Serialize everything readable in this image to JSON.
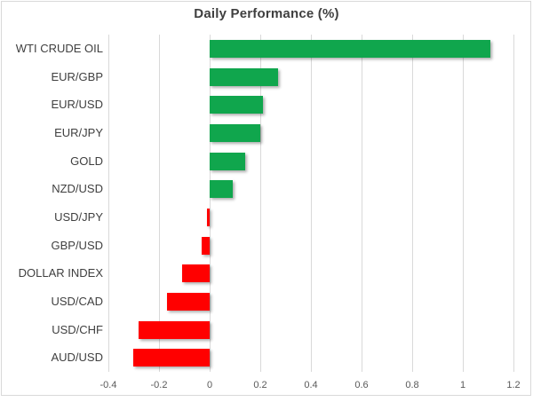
{
  "chart_data": {
    "type": "bar",
    "orientation": "horizontal",
    "title": "Daily Performance (%)",
    "categories": [
      "WTI CRUDE OIL",
      "EUR/GBP",
      "EUR/USD",
      "EUR/JPY",
      "GOLD",
      "NZD/USD",
      "USD/JPY",
      "GBP/USD",
      "DOLLAR INDEX",
      "USD/CAD",
      "USD/CHF",
      "AUD/USD"
    ],
    "values": [
      1.11,
      0.27,
      0.21,
      0.2,
      0.14,
      0.09,
      -0.01,
      -0.03,
      -0.11,
      -0.17,
      -0.28,
      -0.3
    ],
    "xlabel": "",
    "ylabel": "",
    "xlim": [
      -0.4,
      1.2
    ],
    "x_ticks": [
      -0.4,
      -0.2,
      0,
      0.2,
      0.4,
      0.6,
      0.8,
      1,
      1.2
    ],
    "x_tick_labels": [
      "-0.4",
      "-0.2",
      "0",
      "0.2",
      "0.4",
      "0.6",
      "0.8",
      "1",
      "1.2"
    ],
    "grid": "vertical",
    "legend": "none",
    "colors": {
      "positive": "#10a64d",
      "negative": "#ff0000",
      "gridline": "#d9d9d9",
      "frame_border": "#d9d9d9",
      "title_text": "#3f3f3f",
      "category_text": "#3f3f3f",
      "axis_text": "#595959",
      "background": "#ffffff"
    }
  }
}
